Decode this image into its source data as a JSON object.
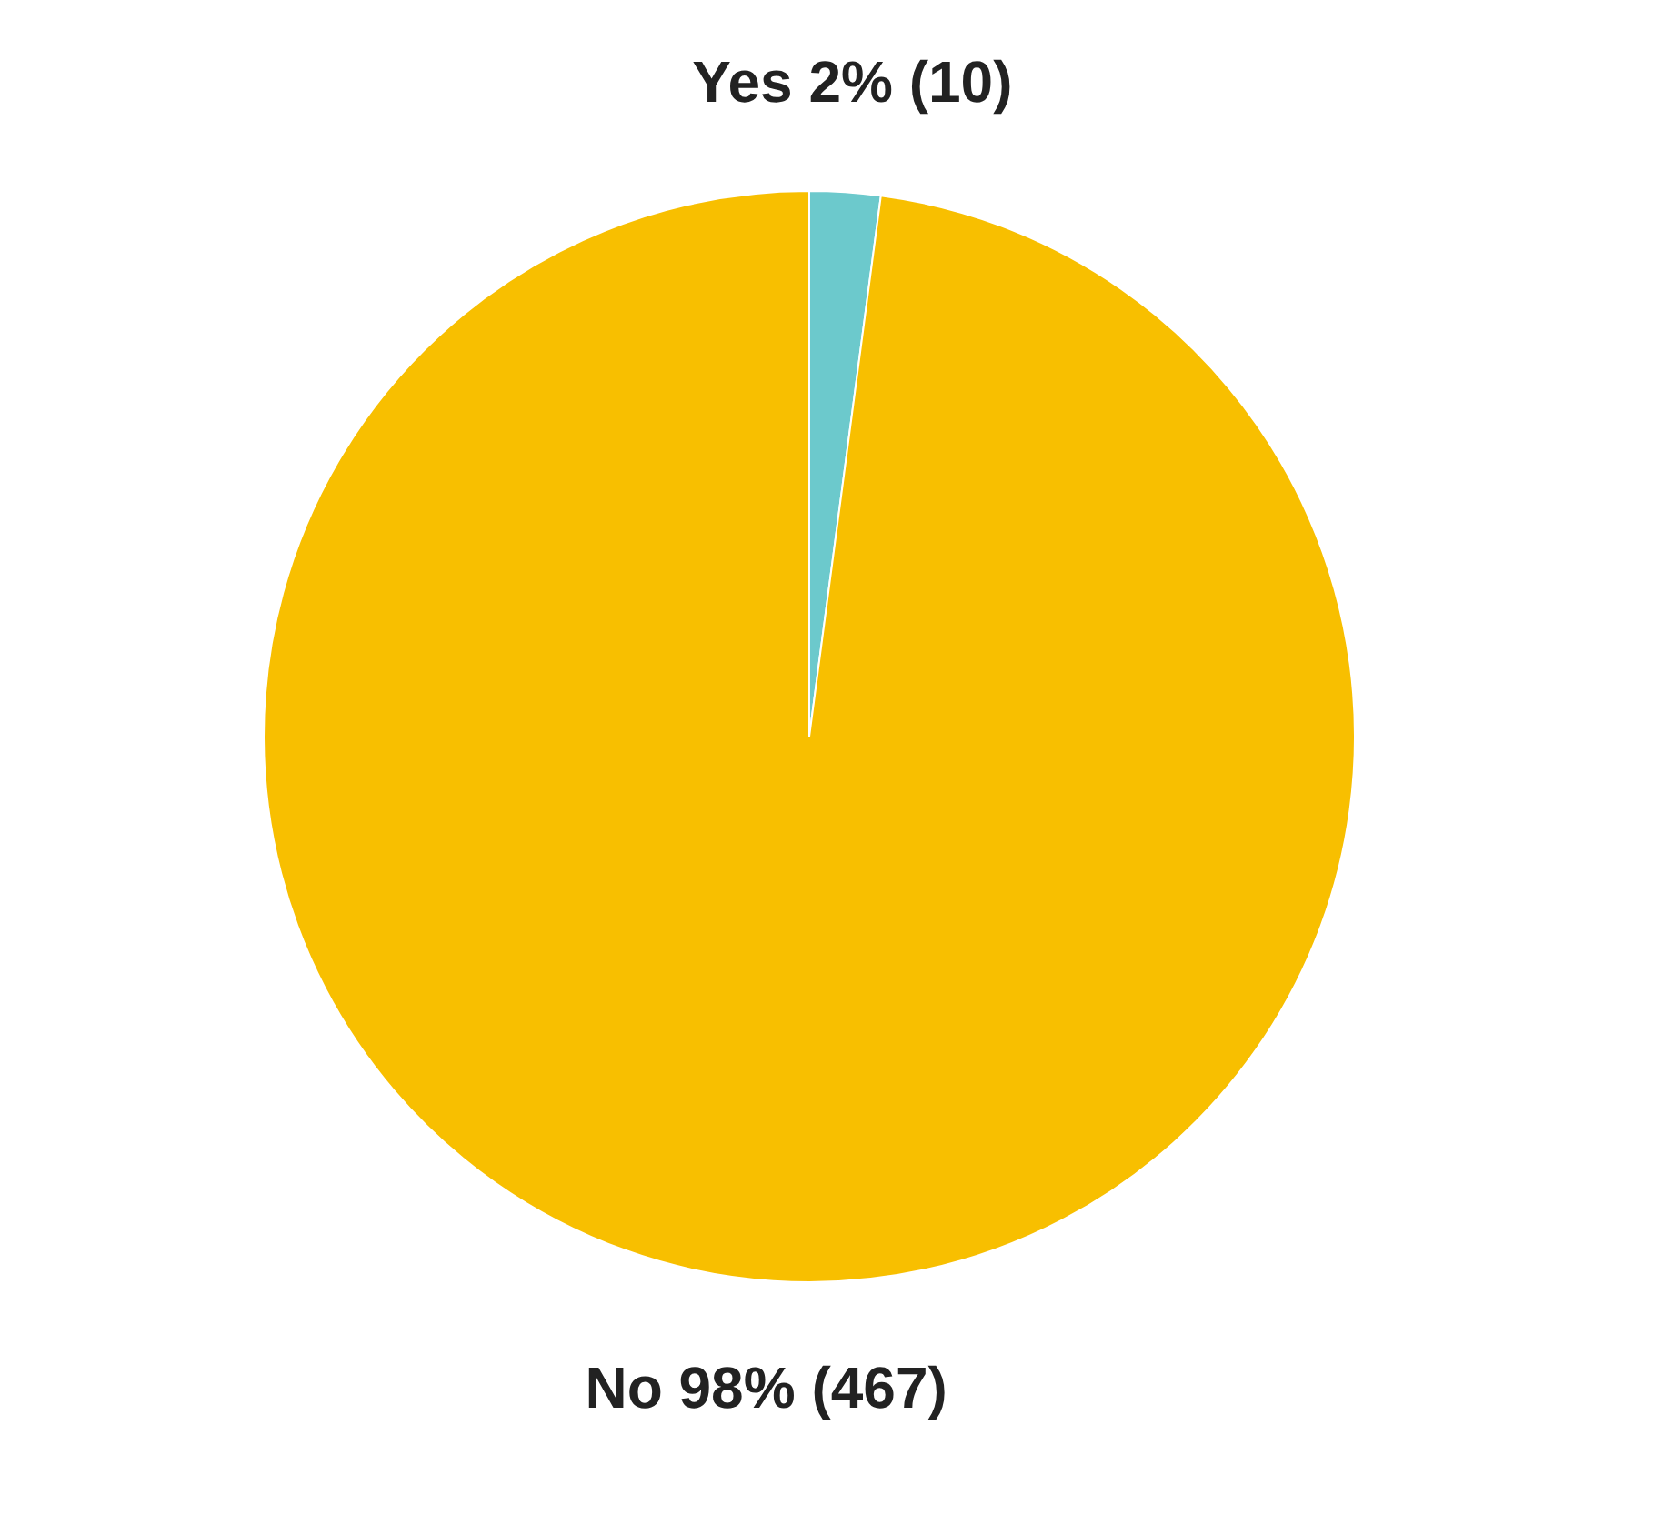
{
  "chart_data": {
    "type": "pie",
    "categories": [
      "Yes",
      "No"
    ],
    "values": [
      10,
      467
    ],
    "colors": [
      "#6cc9cc",
      "#f8bf00"
    ],
    "value_labels": [
      "2% (10)",
      "98% (467)"
    ],
    "legend": false
  }
}
